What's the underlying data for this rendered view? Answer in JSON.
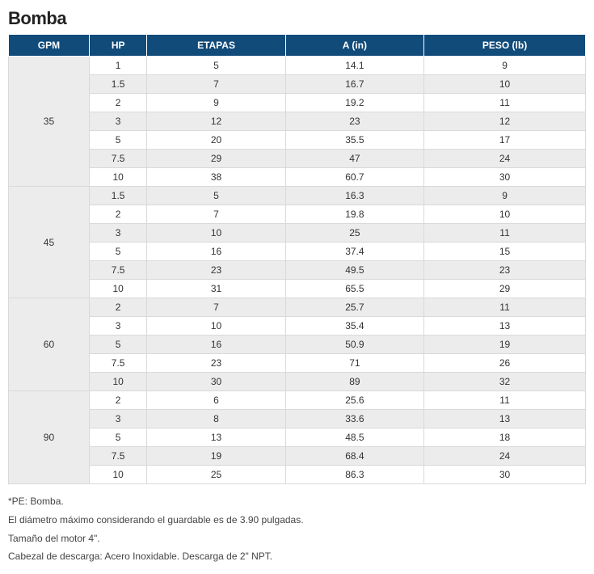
{
  "title": "Bomba",
  "table": {
    "type": "table",
    "header_bg": "#114b7a",
    "header_fg": "#ffffff",
    "row_bg_odd": "#ffffff",
    "row_bg_even": "#ececec",
    "border_color": "#d9d9d9",
    "fontsize": 12,
    "columns": [
      {
        "key": "gpm",
        "label": "GPM",
        "width_pct": 14
      },
      {
        "key": "hp",
        "label": "HP",
        "width_pct": 10
      },
      {
        "key": "etapas",
        "label": "ETAPAS",
        "width_pct": 24
      },
      {
        "key": "a",
        "label": "A (in)",
        "width_pct": 24
      },
      {
        "key": "peso",
        "label": "PESO (lb)",
        "width_pct": 28
      }
    ],
    "groups": [
      {
        "gpm": "35",
        "rows": [
          {
            "hp": "1",
            "etapas": "5",
            "a": "14.1",
            "peso": "9"
          },
          {
            "hp": "1.5",
            "etapas": "7",
            "a": "16.7",
            "peso": "10"
          },
          {
            "hp": "2",
            "etapas": "9",
            "a": "19.2",
            "peso": "11"
          },
          {
            "hp": "3",
            "etapas": "12",
            "a": "23",
            "peso": "12"
          },
          {
            "hp": "5",
            "etapas": "20",
            "a": "35.5",
            "peso": "17"
          },
          {
            "hp": "7.5",
            "etapas": "29",
            "a": "47",
            "peso": "24"
          },
          {
            "hp": "10",
            "etapas": "38",
            "a": "60.7",
            "peso": "30"
          }
        ]
      },
      {
        "gpm": "45",
        "rows": [
          {
            "hp": "1.5",
            "etapas": "5",
            "a": "16.3",
            "peso": "9"
          },
          {
            "hp": "2",
            "etapas": "7",
            "a": "19.8",
            "peso": "10"
          },
          {
            "hp": "3",
            "etapas": "10",
            "a": "25",
            "peso": "11"
          },
          {
            "hp": "5",
            "etapas": "16",
            "a": "37.4",
            "peso": "15"
          },
          {
            "hp": "7.5",
            "etapas": "23",
            "a": "49.5",
            "peso": "23"
          },
          {
            "hp": "10",
            "etapas": "31",
            "a": "65.5",
            "peso": "29"
          }
        ]
      },
      {
        "gpm": "60",
        "rows": [
          {
            "hp": "2",
            "etapas": "7",
            "a": "25.7",
            "peso": "11"
          },
          {
            "hp": "3",
            "etapas": "10",
            "a": "35.4",
            "peso": "13"
          },
          {
            "hp": "5",
            "etapas": "16",
            "a": "50.9",
            "peso": "19"
          },
          {
            "hp": "7.5",
            "etapas": "23",
            "a": "71",
            "peso": "26"
          },
          {
            "hp": "10",
            "etapas": "30",
            "a": "89",
            "peso": "32"
          }
        ]
      },
      {
        "gpm": "90",
        "rows": [
          {
            "hp": "2",
            "etapas": "6",
            "a": "25.6",
            "peso": "11"
          },
          {
            "hp": "3",
            "etapas": "8",
            "a": "33.6",
            "peso": "13"
          },
          {
            "hp": "5",
            "etapas": "13",
            "a": "48.5",
            "peso": "18"
          },
          {
            "hp": "7.5",
            "etapas": "19",
            "a": "68.4",
            "peso": "24"
          },
          {
            "hp": "10",
            "etapas": "25",
            "a": "86.3",
            "peso": "30"
          }
        ]
      }
    ]
  },
  "notes": [
    "*PE: Bomba.",
    "El diámetro máximo considerando el guardable es de 3.90 pulgadas.",
    "Tamaño del motor 4\".",
    "Cabezal de descarga: Acero Inoxidable. Descarga de 2\" NPT."
  ]
}
